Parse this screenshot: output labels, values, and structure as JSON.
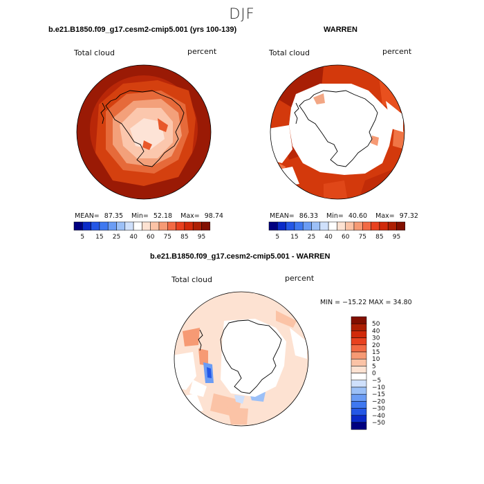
{
  "season": "DJF",
  "panels": [
    {
      "title": "b.e21.B1850.f09_g17.cesm2-cmip5.001 (yrs 100-139)",
      "left_label": "Total cloud",
      "right_label": "percent",
      "stats": {
        "mean_label": "MEAN=",
        "mean": "87.35",
        "min_label": "Min=",
        "min": "52.18",
        "max_label": "Max=",
        "max": "98.74"
      }
    },
    {
      "title": "WARREN",
      "left_label": "Total cloud",
      "right_label": "percent",
      "stats": {
        "mean_label": "MEAN=",
        "mean": "86.33",
        "min_label": "Min=",
        "min": "40.60",
        "max_label": "Max=",
        "max": "97.32"
      }
    },
    {
      "title": "b.e21.B1850.f09_g17.cesm2-cmip5.001 - WARREN",
      "left_label": "Total cloud",
      "right_label": "percent",
      "stats_text": "MIN = −15.22 MAX =  34.80"
    }
  ],
  "colorbar_abs": {
    "colors": [
      "#000080",
      "#0a2ac8",
      "#2457e6",
      "#3f78f0",
      "#6b9cf4",
      "#9cc0f7",
      "#cfe0fb",
      "#ffffff",
      "#fde2d2",
      "#fbc3a6",
      "#f69a74",
      "#f26a44",
      "#e8411f",
      "#d12a0a",
      "#ad1f03",
      "#820f00"
    ],
    "labels": [
      "5",
      "15",
      "25",
      "40",
      "60",
      "75",
      "85",
      "95"
    ]
  },
  "colorbar_diff": {
    "colors": [
      "#820f00",
      "#ad1f03",
      "#d12a0a",
      "#e8411f",
      "#f26a44",
      "#f69a74",
      "#fbc3a6",
      "#fde2d2",
      "#ffffff",
      "#cfe0fb",
      "#9cc0f7",
      "#6b9cf4",
      "#3f78f0",
      "#2457e6",
      "#0a2ac8",
      "#000080"
    ],
    "labels": [
      "50",
      "40",
      "30",
      "20",
      "15",
      "10",
      "5",
      "0",
      "−5",
      "−10",
      "−15",
      "−20",
      "−30",
      "−40",
      "−50"
    ]
  }
}
